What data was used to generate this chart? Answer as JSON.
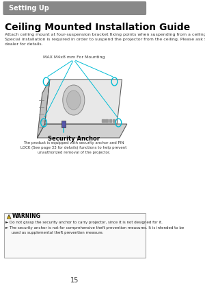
{
  "page_bg": "#ffffff",
  "header_bg": "#888888",
  "header_text": "Setting Up",
  "header_text_color": "#ffffff",
  "title": "Ceiling Mounted Installation Guide",
  "body_text": "Attach ceiling mount at four-suspension bracket fixing points when suspending from a ceiling.\nSpecial installation is required in order to suspend the projector from the ceiling. Please ask your\ndealer for details.",
  "label_mounting": "MAX M4x8 mm For Mounting",
  "label_security": "Security Anchor",
  "security_desc": "The product is equipped with security anchor and PIN\nLOCK (See page 33 for details) functions to help prevent\nunauthorized removal of the projector.",
  "warning_title": "WARNING",
  "warning_lines": [
    "► Do not grasp the security anchor to carry projector, since it is not designed for it.",
    "► The security anchor is not for comprehensive theft prevention measures. It is intended to be\n     used as supplemental theft prevention measure."
  ],
  "page_number": "15",
  "cyan": "#00bcd4",
  "warning_bg": "#f9f9f9",
  "warning_border": "#aaaaaa"
}
